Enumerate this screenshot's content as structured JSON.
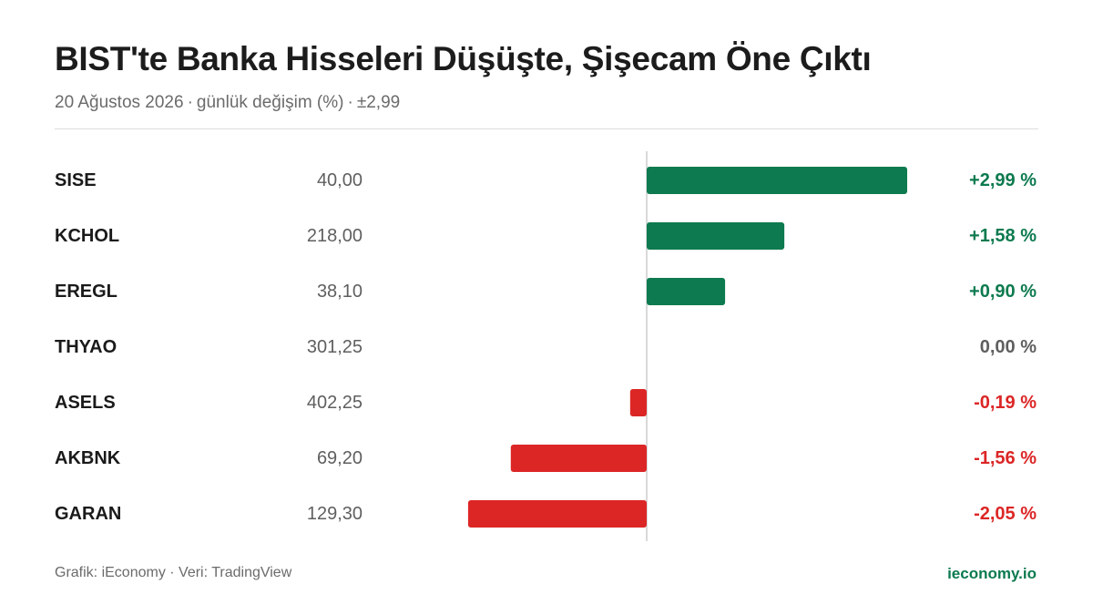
{
  "header": {
    "title": "BIST'te Banka Hisseleri Düşüşte, Şişecam Öne Çıktı",
    "date": "20 Ağustos 2026",
    "metric": "günlük değişim (%)",
    "range_label": "±2,99",
    "separator": "·"
  },
  "footer": {
    "credit": "Grafik: iEconomy · Veri: TradingView",
    "brand": "ieconomy.io"
  },
  "colors": {
    "positive": "#0d7a4f",
    "negative": "#dc2626",
    "neutral": "#5f5f5f",
    "axis": "#d9d9d9"
  },
  "chart_data": {
    "type": "bar",
    "orientation": "horizontal",
    "value_unit": "%",
    "xlim": [
      -2.99,
      2.99
    ],
    "rows": [
      {
        "ticker": "SISE",
        "price": "40,00",
        "change": 2.99,
        "change_label": "+2,99 %"
      },
      {
        "ticker": "KCHOL",
        "price": "218,00",
        "change": 1.58,
        "change_label": "+1,58 %"
      },
      {
        "ticker": "EREGL",
        "price": "38,10",
        "change": 0.9,
        "change_label": "+0,90 %"
      },
      {
        "ticker": "THYAO",
        "price": "301,25",
        "change": 0.0,
        "change_label": "0,00 %"
      },
      {
        "ticker": "ASELS",
        "price": "402,25",
        "change": -0.19,
        "change_label": "-0,19 %"
      },
      {
        "ticker": "AKBNK",
        "price": "69,20",
        "change": -1.56,
        "change_label": "-1,56 %"
      },
      {
        "ticker": "GARAN",
        "price": "129,30",
        "change": -2.05,
        "change_label": "-2,05 %"
      }
    ]
  }
}
